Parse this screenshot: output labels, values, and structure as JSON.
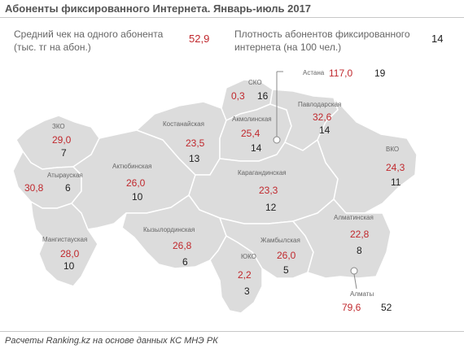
{
  "title": "Абоненты фиксированного Интернета. Январь-июль 2017",
  "legend": {
    "avg_label_line1": "Средний чек на одного абонента",
    "avg_label_line2": "(тыс. тг на абон.)",
    "avg_value": "52,9",
    "density_label_line1": "Плотность абонентов фиксированного",
    "density_label_line2": "интернета (на 100 чел.)",
    "density_value": "14"
  },
  "colors": {
    "avg_check": "#c0282d",
    "density": "#222222",
    "region_fill": "#dcdcdc",
    "region_border": "#ffffff"
  },
  "regions": {
    "zko": {
      "name": "ЗКО",
      "avg": "29,0",
      "density": "7"
    },
    "atyrau": {
      "name": "Атырауская",
      "avg": "30,8",
      "density": "6"
    },
    "mangistau": {
      "name": "Мангистауская",
      "avg": "28,0",
      "density": "10"
    },
    "aktobe": {
      "name": "Актюбинская",
      "avg": "26,0",
      "density": "10"
    },
    "kostanay": {
      "name": "Костанайская",
      "avg": "23,5",
      "density": "13"
    },
    "sko": {
      "name": "СКО",
      "avg": "0,3",
      "density": "16"
    },
    "akmola": {
      "name": "Акмолинская",
      "avg": "25,4",
      "density": "14"
    },
    "astana": {
      "name": "Астана",
      "avg": "117,0",
      "density": "19"
    },
    "pavlodar": {
      "name": "Павлодарская",
      "avg": "32,6",
      "density": "14"
    },
    "vko": {
      "name": "ВКО",
      "avg": "24,3",
      "density": "11"
    },
    "karaganda": {
      "name": "Карагандинская",
      "avg": "23,3",
      "density": "12"
    },
    "kyzylorda": {
      "name": "Кызылординская",
      "avg": "26,8",
      "density": "6"
    },
    "yuko": {
      "name": "ЮКО",
      "avg": "2,2",
      "density": "3"
    },
    "zhambyl": {
      "name": "Жамбылская",
      "avg": "26,0",
      "density": "5"
    },
    "almaty_obl": {
      "name": "Алматинская",
      "avg": "22,8",
      "density": "8"
    },
    "almaty": {
      "name": "Алматы",
      "avg": "79,6",
      "density": "52"
    }
  },
  "footer": "Расчеты Ranking.kz на основе данных КС МНЭ РК"
}
